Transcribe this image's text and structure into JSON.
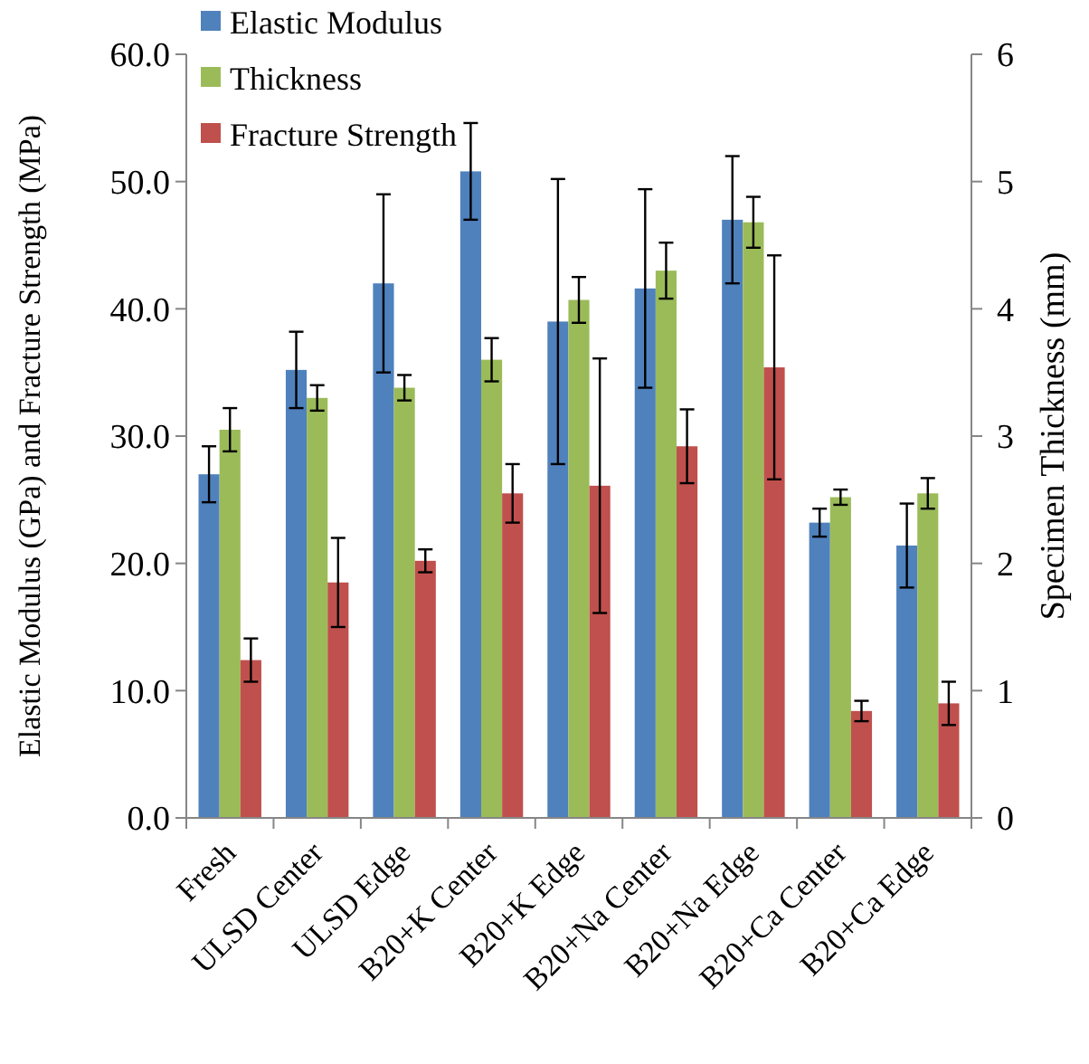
{
  "chart_data": {
    "type": "bar",
    "ylabel": "Elastic Modulus (GPa) and Fracture Strength (MPa)",
    "y2label": "Specimen Thickness (mm)",
    "categories": [
      "Fresh",
      "ULSD Center",
      "ULSD Edge",
      "B20+K Center",
      "B20+K Edge",
      "B20+Na Center",
      "B20+Na Edge",
      "B20+Ca Center",
      "B20+Ca Edge"
    ],
    "series": [
      {
        "name": "Elastic Modulus",
        "color": "#4f81bd",
        "values": [
          27.0,
          35.2,
          42.0,
          50.8,
          39.0,
          41.6,
          47.0,
          23.2,
          21.4
        ],
        "errors": [
          2.2,
          3.0,
          7.0,
          3.8,
          11.2,
          7.8,
          5.0,
          1.1,
          3.3
        ]
      },
      {
        "name": "Thickness",
        "color": "#9bbb59",
        "axis": "y2",
        "values": [
          3.05,
          3.3,
          3.38,
          3.6,
          4.07,
          4.3,
          4.68,
          2.52,
          2.55
        ],
        "errors": [
          0.17,
          0.1,
          0.1,
          0.17,
          0.18,
          0.22,
          0.2,
          0.06,
          0.12
        ]
      },
      {
        "name": "Fracture Strength",
        "color": "#c0504d",
        "values": [
          12.4,
          18.5,
          20.2,
          25.5,
          26.1,
          29.2,
          35.4,
          8.4,
          9.0
        ],
        "errors": [
          1.7,
          3.5,
          0.9,
          2.3,
          10.0,
          2.9,
          8.8,
          0.8,
          1.7
        ]
      }
    ],
    "ylim": [
      0,
      60
    ],
    "yticks": [
      {
        "value": 0,
        "label": "0.0"
      },
      {
        "value": 10,
        "label": "10.0"
      },
      {
        "value": 20,
        "label": "20.0"
      },
      {
        "value": 30,
        "label": "30.0"
      },
      {
        "value": 40,
        "label": "40.0"
      },
      {
        "value": 50,
        "label": "50.0"
      },
      {
        "value": 60,
        "label": "60.0"
      }
    ],
    "y2lim": [
      0,
      6
    ],
    "y2ticks": [
      0,
      1,
      2,
      3,
      4,
      5,
      6
    ],
    "legend": "top left",
    "grid": false
  }
}
